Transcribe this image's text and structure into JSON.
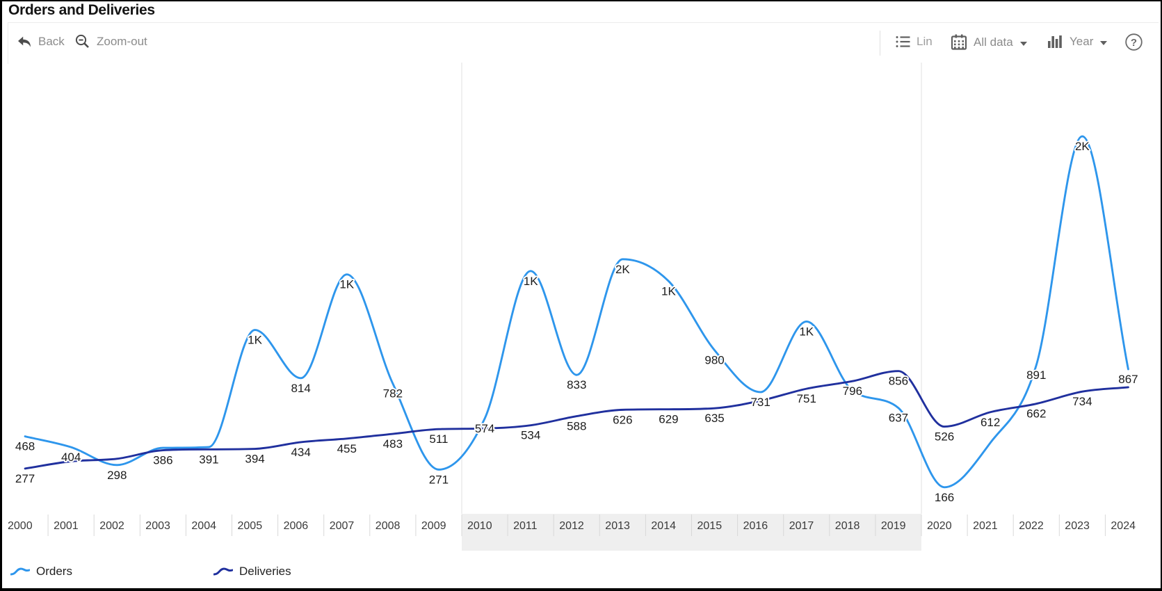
{
  "window": {
    "title": "Orders and Deliveries"
  },
  "toolbar": {
    "back_label": "Back",
    "zoomout_label": "Zoom-out",
    "lin_label": "Lin",
    "alldata_label": "All data",
    "year_label": "Year",
    "help_label": "?"
  },
  "chart_data": {
    "type": "line",
    "title": "Orders and Deliveries",
    "x": [
      2000,
      2001,
      2002,
      2003,
      2004,
      2005,
      2006,
      2007,
      2008,
      2009,
      2010,
      2011,
      2012,
      2013,
      2014,
      2015,
      2016,
      2017,
      2018,
      2019,
      2020,
      2021,
      2022,
      2023,
      2024
    ],
    "series": [
      {
        "name": "Orders",
        "color": "#2E96EC",
        "values": [
          468,
          404,
          298,
          400,
          405,
          1100,
          814,
          1430,
          782,
          271,
          574,
          1450,
          833,
          1520,
          1390,
          980,
          731,
          1150,
          740,
          637,
          166,
          430,
          891,
          2250,
          867
        ],
        "labels": [
          "468",
          "404",
          "298",
          null,
          null,
          "1K",
          "814",
          "1K",
          "782",
          "271",
          "574",
          "1K",
          "833",
          "2K",
          "1K",
          "980",
          "731",
          "1K",
          null,
          "637",
          "166",
          null,
          "891",
          "2K",
          "867"
        ]
      },
      {
        "name": "Deliveries",
        "color": "#20309E",
        "values": [
          277,
          320,
          335,
          386,
          391,
          394,
          434,
          455,
          483,
          511,
          515,
          534,
          588,
          626,
          629,
          635,
          680,
          751,
          796,
          856,
          526,
          612,
          662,
          734,
          760
        ],
        "labels": [
          "277",
          null,
          null,
          "386",
          "391",
          "394",
          "434",
          "455",
          "483",
          "511",
          null,
          "534",
          "588",
          "626",
          "629",
          "635",
          null,
          "751",
          "796",
          "856",
          "526",
          "612",
          "662",
          "734",
          null
        ]
      }
    ],
    "ylim": [
      0,
      2750
    ],
    "grid": "decade-separators",
    "decade_band": {
      "from_year": 2010,
      "to_year": 2020
    },
    "legend_position": "bottom"
  },
  "legend": {
    "items": [
      {
        "label": "Orders",
        "color": "#2E96EC"
      },
      {
        "label": "Deliveries",
        "color": "#20309E"
      }
    ]
  }
}
